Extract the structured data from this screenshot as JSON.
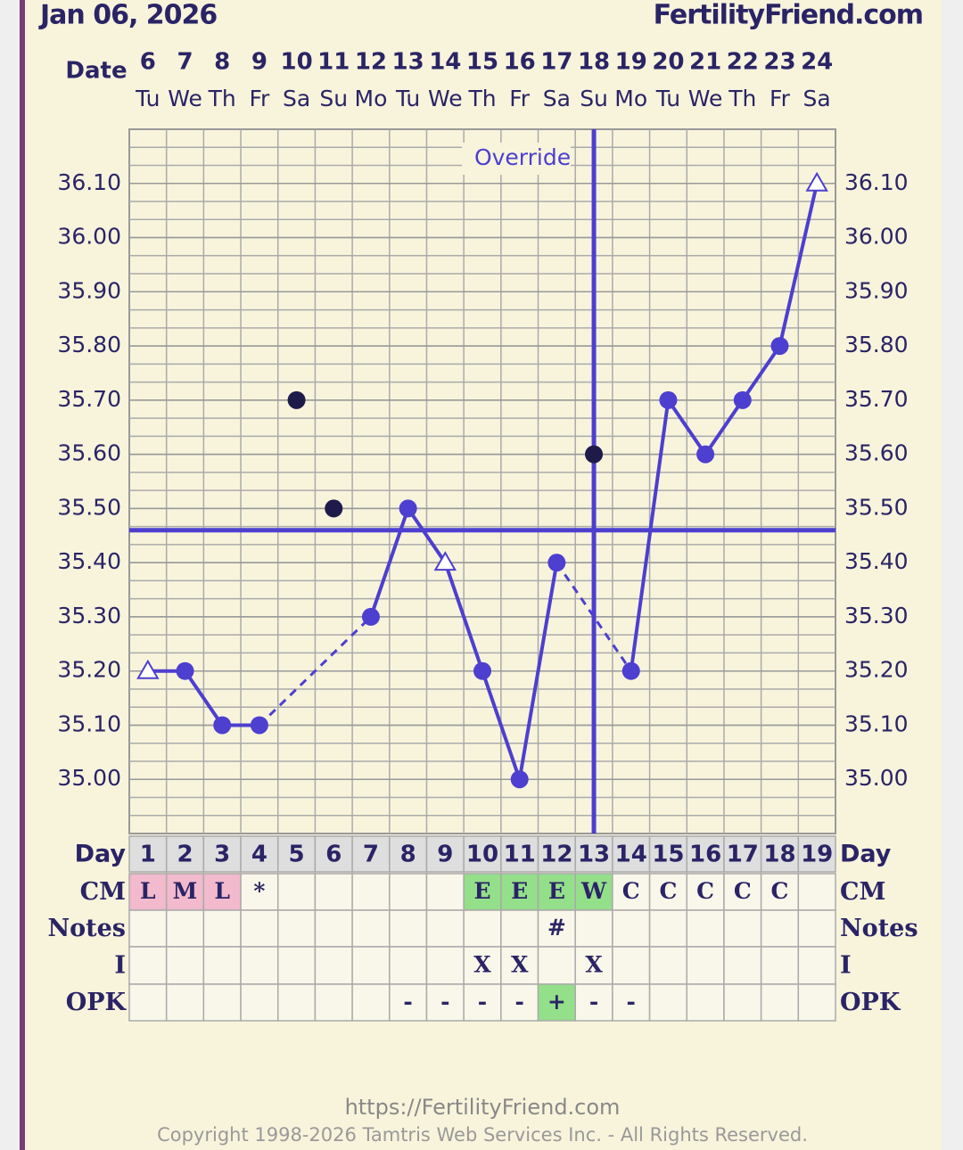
{
  "chart_data": {
    "type": "line",
    "title": "Jan 06, 2026",
    "site": "FertilityFriend.com",
    "date_label": "Date",
    "categories": [
      "6",
      "7",
      "8",
      "9",
      "10",
      "11",
      "12",
      "13",
      "14",
      "15",
      "16",
      "17",
      "18",
      "19",
      "20",
      "21",
      "22",
      "23",
      "24"
    ],
    "weekdays": [
      "Tu",
      "We",
      "Th",
      "Fr",
      "Sa",
      "Su",
      "Mo",
      "Tu",
      "We",
      "Th",
      "Fr",
      "Sa",
      "Su",
      "Mo",
      "Tu",
      "We",
      "Th",
      "Fr",
      "Sa"
    ],
    "values": [
      35.2,
      35.2,
      35.1,
      35.1,
      null,
      null,
      35.3,
      35.5,
      35.4,
      35.2,
      35.0,
      35.4,
      null,
      35.2,
      35.7,
      35.6,
      35.7,
      35.8,
      36.1
    ],
    "markers": [
      "triangle",
      "circle",
      "circle",
      "circle",
      null,
      null,
      "circle",
      "circle",
      "triangle",
      "circle",
      "circle",
      "circle",
      null,
      "circle",
      "circle",
      "circle",
      "circle",
      "circle",
      "triangle"
    ],
    "color": "#4d3fcf",
    "discarded": [
      null,
      null,
      null,
      null,
      35.7,
      35.5,
      null,
      null,
      null,
      null,
      null,
      null,
      35.6,
      null,
      null,
      null,
      null,
      null,
      null
    ],
    "discarded_color": "#1e1b4b",
    "gap_style": "dashed",
    "coverline": 35.46,
    "override": {
      "label": "Override",
      "day": 13
    },
    "ylim": [
      34.9,
      36.2
    ],
    "yticks": [
      {
        "value": 35.0,
        "label": "35.00"
      },
      {
        "value": 35.1,
        "label": "35.10"
      },
      {
        "value": 35.2,
        "label": "35.20"
      },
      {
        "value": 35.3,
        "label": "35.30"
      },
      {
        "value": 35.4,
        "label": "35.40"
      },
      {
        "value": 35.5,
        "label": "35.50"
      },
      {
        "value": 35.6,
        "label": "35.60"
      },
      {
        "value": 35.7,
        "label": "35.70"
      },
      {
        "value": 35.8,
        "label": "35.80"
      },
      {
        "value": 35.9,
        "label": "35.90"
      },
      {
        "value": 36.0,
        "label": "36.00"
      },
      {
        "value": 36.1,
        "label": "36.10"
      }
    ],
    "grid": true,
    "table": {
      "rows": [
        {
          "label": "Day",
          "cells": [
            "1",
            "2",
            "3",
            "4",
            "5",
            "6",
            "7",
            "8",
            "9",
            "10",
            "11",
            "12",
            "13",
            "14",
            "15",
            "16",
            "17",
            "18",
            "19"
          ]
        },
        {
          "label": "CM",
          "cells": [
            "L",
            "M",
            "L",
            "*",
            null,
            null,
            null,
            null,
            null,
            "E",
            "E",
            "E",
            "W",
            "C",
            "C",
            "C",
            "C",
            "C",
            null
          ],
          "colors": [
            "#f3b9cd",
            "#f3b9cd",
            "#f3b9cd",
            null,
            null,
            null,
            null,
            null,
            null,
            "#94df8a",
            "#94df8a",
            "#94df8a",
            "#94df8a",
            null,
            null,
            null,
            null,
            null,
            null
          ]
        },
        {
          "label": "Notes",
          "cells": [
            null,
            null,
            null,
            null,
            null,
            null,
            null,
            null,
            null,
            null,
            null,
            "#",
            null,
            null,
            null,
            null,
            null,
            null,
            null
          ]
        },
        {
          "label": "I",
          "cells": [
            null,
            null,
            null,
            null,
            null,
            null,
            null,
            null,
            null,
            "X",
            "X",
            null,
            "X",
            null,
            null,
            null,
            null,
            null,
            null
          ]
        },
        {
          "label": "OPK",
          "cells": [
            null,
            null,
            null,
            null,
            null,
            null,
            null,
            "-",
            "-",
            "-",
            "-",
            "+",
            "-",
            "-",
            null,
            null,
            null,
            null,
            null
          ],
          "colors": [
            null,
            null,
            null,
            null,
            null,
            null,
            null,
            null,
            null,
            null,
            null,
            "#94df8a",
            null,
            null,
            null,
            null,
            null,
            null,
            null
          ]
        }
      ]
    },
    "footer": {
      "url": "https://FertilityFriend.com",
      "copyright": "Copyright 1998-2026 Tamtris Web Services Inc. - All Rights Reserved."
    }
  }
}
